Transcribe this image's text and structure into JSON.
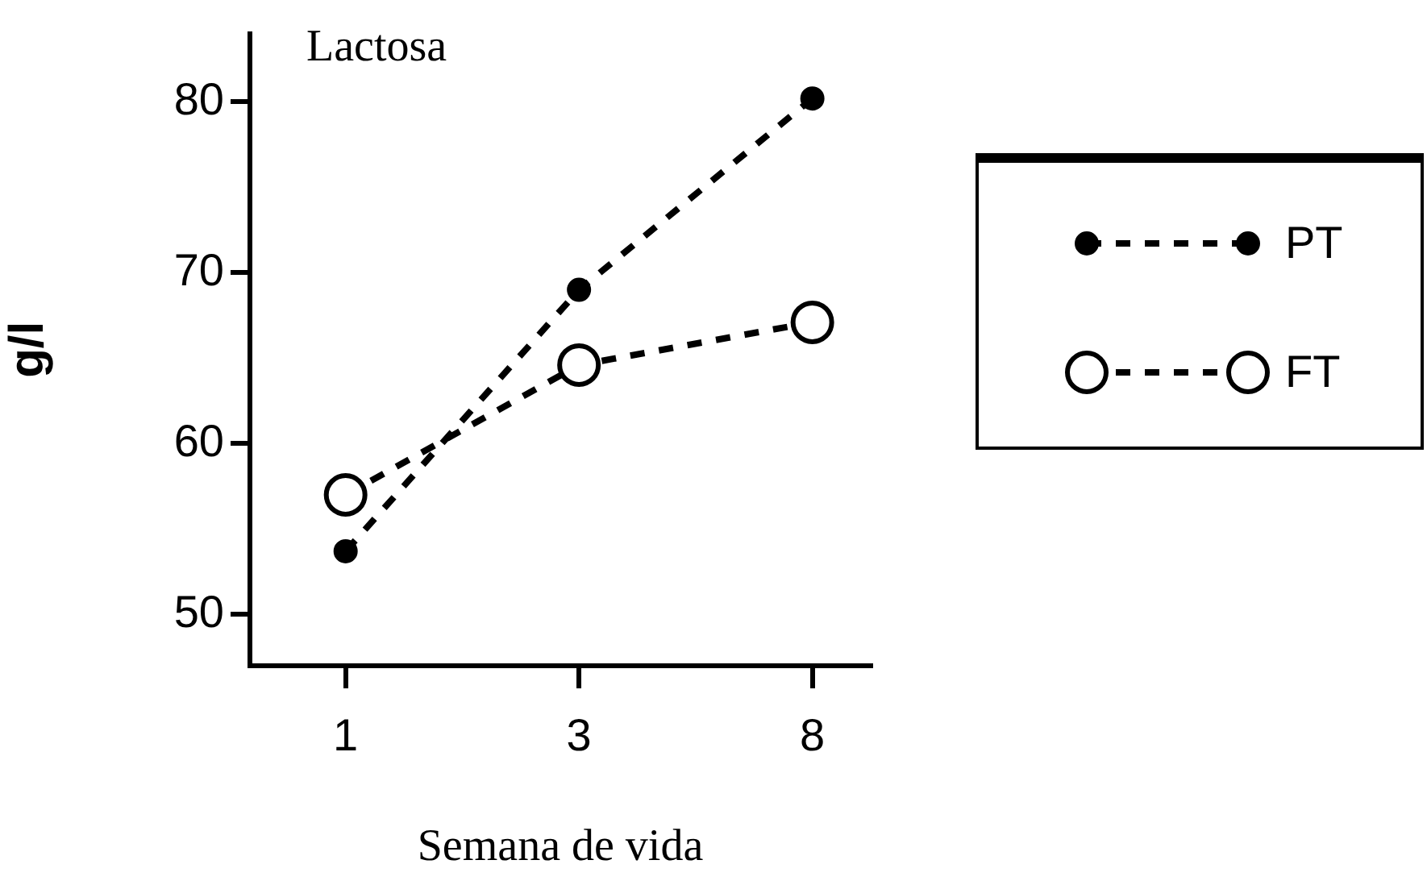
{
  "chart_data": {
    "type": "line",
    "title": "Lactosa",
    "xlabel": "Semana de vida",
    "ylabel": "g/l",
    "categories": [
      "1",
      "3",
      "8"
    ],
    "series": [
      {
        "name": "PT",
        "color": "#000000",
        "values": [
          53.7,
          69.0,
          80.2
        ],
        "marker": "circle",
        "line_style": "dashed"
      },
      {
        "name": "FT",
        "color": "#000000",
        "values": [
          57.0,
          64.6,
          67.1
        ],
        "marker": "circle",
        "line_style": "dashed"
      }
    ],
    "ylim": [
      47,
      84
    ],
    "yticks": [
      50,
      60,
      70,
      80
    ],
    "grid": false,
    "legend": "right"
  }
}
